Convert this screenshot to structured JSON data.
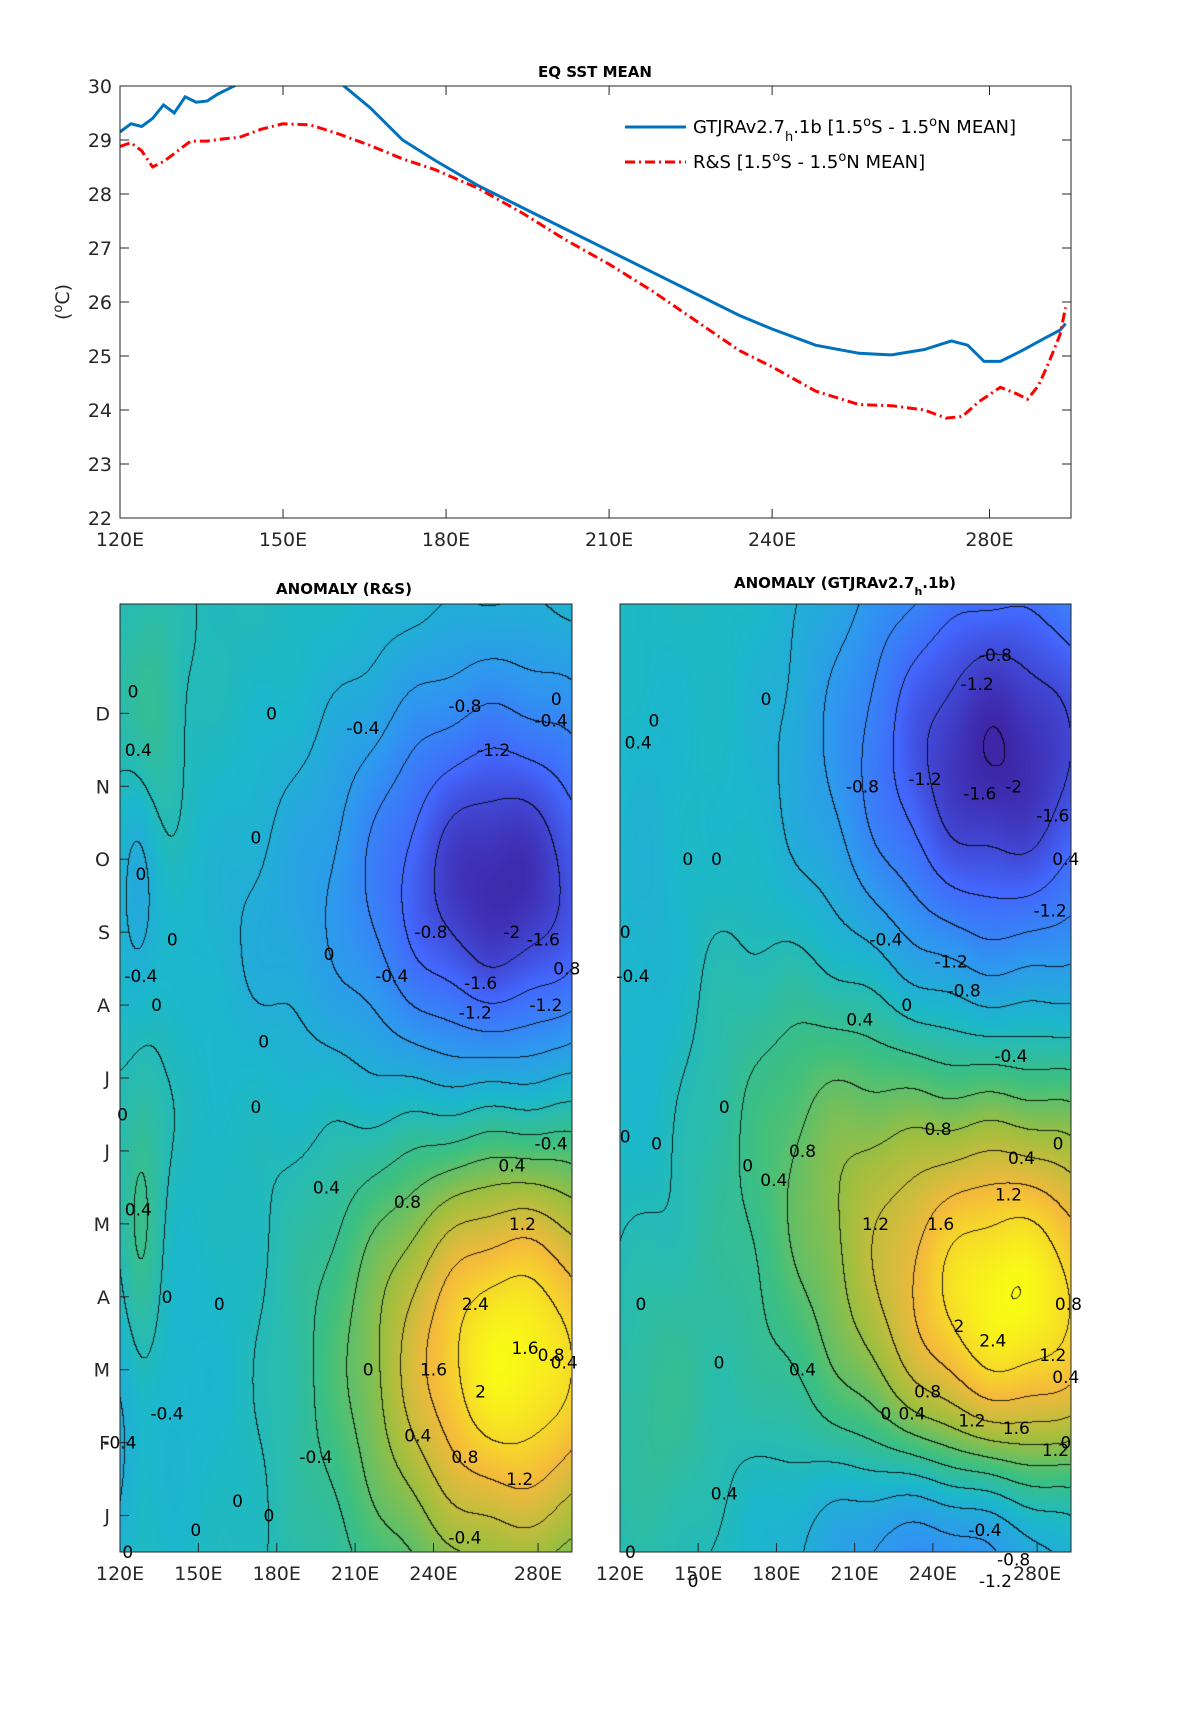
{
  "colors": {
    "gtjra": "#0072BD",
    "rs": "#FF0000",
    "colormap": [
      "#3E26A8",
      "#4367FD",
      "#2F97F0",
      "#1CB8CB",
      "#3FC07E",
      "#A4BE3D",
      "#F4BA3C",
      "#F9FB15"
    ]
  },
  "chart_data": [
    {
      "type": "line",
      "title": "EQ SST MEAN",
      "ylabel": "(°C)",
      "ylabel_base": "(",
      "ylabel_sup": "o",
      "ylabel_unit": "C)",
      "xlim": [
        120,
        295
      ],
      "ylim": [
        22,
        30
      ],
      "x_ticks": [
        120,
        150,
        180,
        210,
        240,
        280
      ],
      "x_tick_labels": [
        "120E",
        "150E",
        "180E",
        "210E",
        "240E",
        "280E"
      ],
      "y_ticks": [
        22,
        23,
        24,
        25,
        26,
        27,
        28,
        29,
        30
      ],
      "y_tick_labels": [
        "22",
        "23",
        "24",
        "25",
        "26",
        "27",
        "28",
        "29",
        "30"
      ],
      "legend_position": "top-right",
      "series": [
        {
          "name": "GTJRAv2.7h.1b [1.5°S - 1.5°N MEAN]",
          "legend_parts": [
            "GTJRAv2.7",
            "h",
            ".1b [1.5",
            "o",
            "S - 1.5",
            "o",
            "N MEAN]"
          ],
          "style": "solid",
          "x": [
            120,
            122,
            124,
            126,
            128,
            130,
            132,
            134,
            136,
            138,
            140,
            143,
            146,
            150,
            155,
            160,
            166,
            172,
            178,
            186,
            194,
            202,
            210,
            218,
            226,
            234,
            240,
            248,
            256,
            262,
            268,
            273,
            276,
            279,
            282,
            286,
            290,
            293,
            294
          ],
          "y": [
            29.15,
            29.3,
            29.25,
            29.4,
            29.65,
            29.5,
            29.8,
            29.7,
            29.72,
            29.85,
            29.95,
            30.1,
            30.25,
            30.45,
            30.4,
            30.1,
            29.6,
            29.0,
            28.62,
            28.15,
            27.75,
            27.35,
            26.95,
            26.55,
            26.15,
            25.75,
            25.5,
            25.2,
            25.05,
            25.02,
            25.12,
            25.28,
            25.2,
            24.9,
            24.9,
            25.1,
            25.32,
            25.48,
            25.6
          ]
        },
        {
          "name": "R&S [1.5°S - 1.5°N MEAN]",
          "legend_parts": [
            "R&S [1.5",
            "o",
            "S - 1.5",
            "o",
            "N MEAN]"
          ],
          "style": "dashdot",
          "x": [
            120,
            122,
            124,
            126,
            128,
            130,
            133,
            136,
            139,
            142,
            146,
            150,
            155,
            160,
            166,
            172,
            178,
            186,
            194,
            202,
            210,
            218,
            226,
            234,
            240,
            248,
            256,
            262,
            268,
            272,
            275,
            278,
            282,
            285,
            287,
            289,
            291,
            293,
            294
          ],
          "y": [
            28.88,
            28.95,
            28.8,
            28.5,
            28.6,
            28.75,
            28.98,
            28.98,
            29.02,
            29.05,
            29.2,
            29.3,
            29.28,
            29.12,
            28.9,
            28.65,
            28.45,
            28.1,
            27.65,
            27.15,
            26.7,
            26.2,
            25.65,
            25.1,
            24.8,
            24.35,
            24.1,
            24.08,
            24.0,
            23.85,
            23.88,
            24.15,
            24.42,
            24.3,
            24.2,
            24.45,
            24.9,
            25.4,
            25.9
          ]
        }
      ]
    },
    {
      "type": "heatmap",
      "title": "ANOMALY (R&S)",
      "x_ticks": [
        120,
        150,
        180,
        210,
        240,
        280
      ],
      "x_tick_labels": [
        "120E",
        "150E",
        "180E",
        "210E",
        "240E",
        "280E"
      ],
      "y_tick_labels": [
        "D",
        "N",
        "O",
        "S",
        "A",
        "J",
        "J",
        "M",
        "A",
        "M",
        "F",
        "J"
      ],
      "xlim": [
        120,
        293
      ],
      "color_range": [
        -2.4,
        2.8
      ],
      "extrema": [
        {
          "x": 270,
          "month": 2.2,
          "value": 2.8,
          "sx": 40,
          "sy": 2.2
        },
        {
          "x": 265,
          "month": 8.6,
          "value": -2.4,
          "sx": 42,
          "sy": 2.1
        },
        {
          "x": 127,
          "month": 8.4,
          "value": -0.7,
          "sx": 6,
          "sy": 1.8
        },
        {
          "x": 128,
          "month": 4.0,
          "value": 0.6,
          "sx": 6,
          "sy": 3.0
        },
        {
          "x": 120,
          "month": 1.0,
          "value": -0.5,
          "sx": 12,
          "sy": 1.5
        },
        {
          "x": 130,
          "month": 10.8,
          "value": 0.5,
          "sx": 8,
          "sy": 1.2
        },
        {
          "x": 170,
          "month": 8.0,
          "value": -0.25,
          "sx": 25,
          "sy": 1.5
        },
        {
          "x": 150,
          "month": 2.0,
          "value": -0.25,
          "sx": 25,
          "sy": 2.0
        }
      ],
      "contour_labels": [
        {
          "text": "0",
          "x": 125,
          "month": 11.3
        },
        {
          "text": "0.4",
          "x": 127,
          "month": 10.5
        },
        {
          "text": "0",
          "x": 178,
          "month": 11.0
        },
        {
          "text": "-0.4",
          "x": 213,
          "month": 10.8
        },
        {
          "text": "-0.8",
          "x": 252,
          "month": 11.1
        },
        {
          "text": "-0.4",
          "x": 285,
          "month": 10.9
        },
        {
          "text": "0",
          "x": 287,
          "month": 11.2
        },
        {
          "text": "-1.2",
          "x": 263,
          "month": 10.5
        },
        {
          "text": "0",
          "x": 172,
          "month": 9.3
        },
        {
          "text": "0",
          "x": 128,
          "month": 8.8
        },
        {
          "text": "0",
          "x": 140,
          "month": 7.9
        },
        {
          "text": "-0.4",
          "x": 128,
          "month": 7.4
        },
        {
          "text": "0",
          "x": 134,
          "month": 7.0
        },
        {
          "text": "0",
          "x": 200,
          "month": 7.7
        },
        {
          "text": "-0.8",
          "x": 239,
          "month": 8.0
        },
        {
          "text": "-0.4",
          "x": 224,
          "month": 7.4
        },
        {
          "text": "-2",
          "x": 270,
          "month": 8.0
        },
        {
          "text": "-1.6",
          "x": 282,
          "month": 7.9
        },
        {
          "text": "0.8",
          "x": 291,
          "month": 7.5
        },
        {
          "text": "-1.6",
          "x": 258,
          "month": 7.3
        },
        {
          "text": "-1.2",
          "x": 256,
          "month": 6.9
        },
        {
          "text": "-1.2",
          "x": 283,
          "month": 7.0
        },
        {
          "text": "0",
          "x": 175,
          "month": 6.5
        },
        {
          "text": "0",
          "x": 121,
          "month": 5.5
        },
        {
          "text": "0",
          "x": 172,
          "month": 5.6
        },
        {
          "text": "0.4",
          "x": 199,
          "month": 4.5
        },
        {
          "text": "0.8",
          "x": 230,
          "month": 4.3
        },
        {
          "text": "0.4",
          "x": 270,
          "month": 4.8
        },
        {
          "text": "-0.4",
          "x": 285,
          "month": 5.1
        },
        {
          "text": "0.4",
          "x": 127,
          "month": 4.2
        },
        {
          "text": "1.2",
          "x": 274,
          "month": 4.0
        },
        {
          "text": "0",
          "x": 138,
          "month": 3.0
        },
        {
          "text": "0",
          "x": 158,
          "month": 2.9
        },
        {
          "text": "2.4",
          "x": 256,
          "month": 2.9
        },
        {
          "text": "1.6",
          "x": 275,
          "month": 2.3
        },
        {
          "text": "0.8",
          "x": 285,
          "month": 2.2
        },
        {
          "text": "0.4",
          "x": 290,
          "month": 2.1
        },
        {
          "text": "0",
          "x": 215,
          "month": 2.0
        },
        {
          "text": "1.6",
          "x": 240,
          "month": 2.0
        },
        {
          "text": "2",
          "x": 258,
          "month": 1.7
        },
        {
          "text": "-0.4",
          "x": 138,
          "month": 1.4
        },
        {
          "text": "-0.4",
          "x": 120,
          "month": 1.0
        },
        {
          "text": "-0.4",
          "x": 195,
          "month": 0.8
        },
        {
          "text": "0.4",
          "x": 234,
          "month": 1.1
        },
        {
          "text": "0.8",
          "x": 252,
          "month": 0.8
        },
        {
          "text": "1.2",
          "x": 273,
          "month": 0.5
        },
        {
          "text": "0",
          "x": 165,
          "month": 0.2
        },
        {
          "text": "0",
          "x": 177,
          "month": 0.0
        },
        {
          "text": "0",
          "x": 149,
          "month": -0.2
        },
        {
          "text": "0",
          "x": 123,
          "month": -0.5
        },
        {
          "text": "-0.4",
          "x": 252,
          "month": -0.3
        }
      ]
    },
    {
      "type": "heatmap",
      "title": "ANOMALY (GTJRAv2.7h.1b)",
      "title_parts": [
        "ANOMALY (GTJRAv2.7",
        "h",
        ".1b)"
      ],
      "x_ticks": [
        120,
        150,
        180,
        210,
        240,
        280
      ],
      "x_tick_labels": [
        "120E",
        "150E",
        "180E",
        "210E",
        "240E",
        "280E"
      ],
      "xlim": [
        120,
        293
      ],
      "color_range": [
        -2.4,
        2.8
      ],
      "extrema": [
        {
          "x": 270,
          "month": 3.0,
          "value": 2.8,
          "sx": 42,
          "sy": 2.0
        },
        {
          "x": 265,
          "month": 10.4,
          "value": -2.4,
          "sx": 45,
          "sy": 2.3
        },
        {
          "x": 248,
          "month": -0.4,
          "value": -1.5,
          "sx": 40,
          "sy": 1.0
        },
        {
          "x": 200,
          "month": 5.3,
          "value": 0.7,
          "sx": 28,
          "sy": 1.8
        },
        {
          "x": 130,
          "month": 8.0,
          "value": -0.3,
          "sx": 12,
          "sy": 3.0
        },
        {
          "x": 135,
          "month": 1.5,
          "value": 0.35,
          "sx": 14,
          "sy": 1.5
        }
      ],
      "contour_labels": [
        {
          "text": "-0.8",
          "x": 264,
          "month": 11.8
        },
        {
          "text": "-1.2",
          "x": 257,
          "month": 11.4
        },
        {
          "text": "0",
          "x": 176,
          "month": 11.2
        },
        {
          "text": "0",
          "x": 133,
          "month": 10.9
        },
        {
          "text": "0.4",
          "x": 127,
          "month": 10.6
        },
        {
          "text": "-0.8",
          "x": 213,
          "month": 10.0
        },
        {
          "text": "-1.2",
          "x": 237,
          "month": 10.1
        },
        {
          "text": "-1.6",
          "x": 258,
          "month": 9.9
        },
        {
          "text": "-2",
          "x": 271,
          "month": 10.0
        },
        {
          "text": "-1.6",
          "x": 286,
          "month": 9.6
        },
        {
          "text": "0",
          "x": 146,
          "month": 9.0
        },
        {
          "text": "0",
          "x": 157,
          "month": 9.0
        },
        {
          "text": "0.4",
          "x": 291,
          "month": 9.0
        },
        {
          "text": "-1.2",
          "x": 285,
          "month": 8.3
        },
        {
          "text": "0",
          "x": 122,
          "month": 8.0
        },
        {
          "text": "-0.4",
          "x": 125,
          "month": 7.4
        },
        {
          "text": "-0.4",
          "x": 222,
          "month": 7.9
        },
        {
          "text": "-1.2",
          "x": 247,
          "month": 7.6
        },
        {
          "text": "-0.8",
          "x": 252,
          "month": 7.2
        },
        {
          "text": "0",
          "x": 230,
          "month": 7.0
        },
        {
          "text": "0.4",
          "x": 212,
          "month": 6.8
        },
        {
          "text": "-0.4",
          "x": 270,
          "month": 6.3
        },
        {
          "text": "0",
          "x": 160,
          "month": 5.6
        },
        {
          "text": "0",
          "x": 122,
          "month": 5.2
        },
        {
          "text": "0",
          "x": 134,
          "month": 5.1
        },
        {
          "text": "0.8",
          "x": 242,
          "month": 5.3
        },
        {
          "text": "0.8",
          "x": 190,
          "month": 5.0
        },
        {
          "text": "0.4",
          "x": 179,
          "month": 4.6
        },
        {
          "text": "0",
          "x": 169,
          "month": 4.8
        },
        {
          "text": "0.4",
          "x": 274,
          "month": 4.9
        },
        {
          "text": "0",
          "x": 288,
          "month": 5.1
        },
        {
          "text": "1.2",
          "x": 269,
          "month": 4.4
        },
        {
          "text": "1.2",
          "x": 218,
          "month": 4.0
        },
        {
          "text": "1.6",
          "x": 243,
          "month": 4.0
        },
        {
          "text": "0",
          "x": 128,
          "month": 2.9
        },
        {
          "text": "0.8",
          "x": 292,
          "month": 2.9
        },
        {
          "text": "2",
          "x": 250,
          "month": 2.6
        },
        {
          "text": "2.4",
          "x": 263,
          "month": 2.4
        },
        {
          "text": "1.2",
          "x": 286,
          "month": 2.2
        },
        {
          "text": "0",
          "x": 158,
          "month": 2.1
        },
        {
          "text": "0.4",
          "x": 190,
          "month": 2.0
        },
        {
          "text": "0.4",
          "x": 291,
          "month": 1.9
        },
        {
          "text": "0.8",
          "x": 238,
          "month": 1.7
        },
        {
          "text": "0",
          "x": 222,
          "month": 1.4
        },
        {
          "text": "0.4",
          "x": 232,
          "month": 1.4
        },
        {
          "text": "1.2",
          "x": 255,
          "month": 1.3
        },
        {
          "text": "1.6",
          "x": 272,
          "month": 1.2
        },
        {
          "text": "1.2",
          "x": 287,
          "month": 0.9
        },
        {
          "text": "0",
          "x": 291,
          "month": 1.0
        },
        {
          "text": "0.4",
          "x": 160,
          "month": 0.3
        },
        {
          "text": "-0.4",
          "x": 260,
          "month": -0.2
        },
        {
          "text": "0",
          "x": 124,
          "month": -0.5
        },
        {
          "text": "-0.8",
          "x": 271,
          "month": -0.6
        },
        {
          "text": "0",
          "x": 148,
          "month": -0.9
        },
        {
          "text": "-1.2",
          "x": 264,
          "month": -0.9
        }
      ]
    }
  ]
}
